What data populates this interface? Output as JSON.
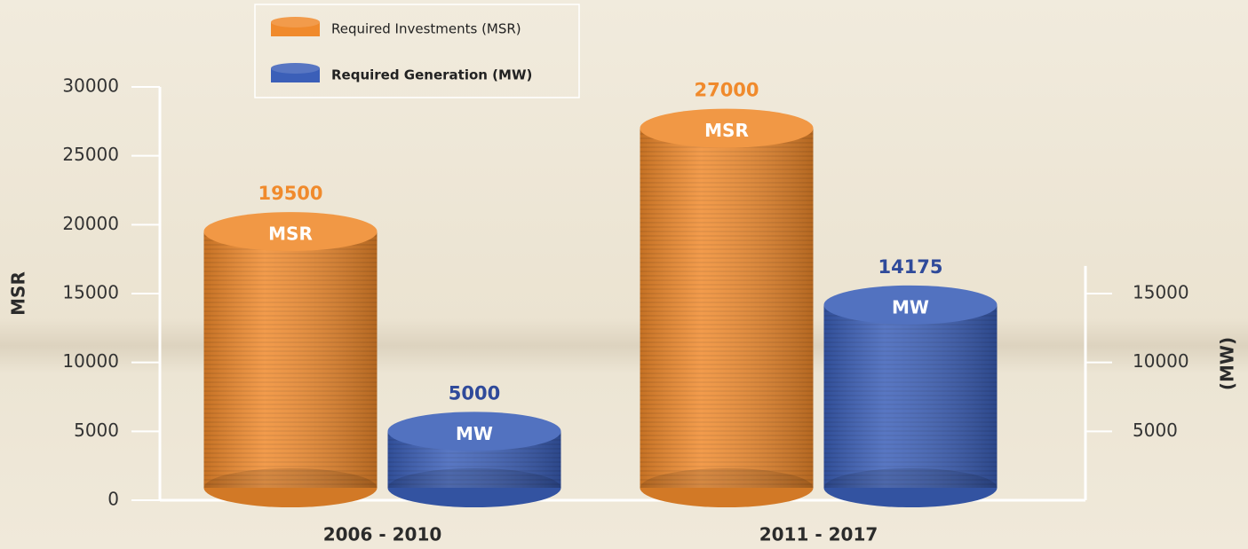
{
  "chart_data": {
    "type": "bar",
    "categories": [
      "2006 - 2010",
      "2011 - 2017"
    ],
    "series": [
      {
        "name": "Required Investments (MSR)",
        "color": "#f08a2c",
        "values": [
          19500,
          27000
        ],
        "bar_label": "MSR"
      },
      {
        "name": "Required Generation (MW)",
        "color": "#3b5fb8",
        "values": [
          5000,
          14175
        ],
        "bar_label": "MW",
        "axis": "y2"
      }
    ],
    "y_label": "MSR",
    "y2_label": "(MW)",
    "ylim": [
      0,
      30000
    ],
    "yticks": [
      0,
      5000,
      10000,
      15000,
      20000,
      25000,
      30000
    ],
    "y2lim": [
      0,
      17000
    ],
    "y2ticks": [
      5000,
      10000,
      15000
    ],
    "legend": "top-left"
  }
}
